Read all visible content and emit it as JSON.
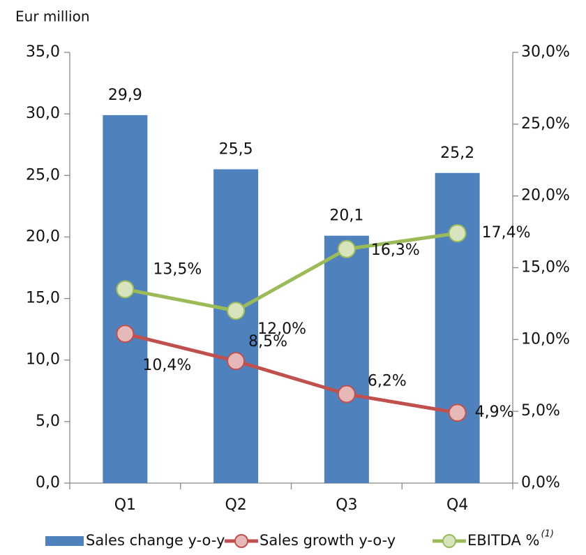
{
  "chart_data": {
    "type": "bar_line",
    "y_axis_label": "Eur million",
    "categories": [
      "Q1",
      "Q2",
      "Q3",
      "Q4"
    ],
    "ylim": [
      0,
      35
    ],
    "yticks": [
      {
        "value": 0,
        "label": "0,0"
      },
      {
        "value": 5,
        "label": "5,0"
      },
      {
        "value": 10,
        "label": "10,0"
      },
      {
        "value": 15,
        "label": "15,0"
      },
      {
        "value": 20,
        "label": "20,0"
      },
      {
        "value": 25,
        "label": "25,0"
      },
      {
        "value": 30,
        "label": "30,0"
      },
      {
        "value": 35,
        "label": "35,0"
      }
    ],
    "y2lim": [
      0,
      30
    ],
    "y2ticks": [
      {
        "value": 0,
        "label": "0,0%"
      },
      {
        "value": 5,
        "label": "5,0%"
      },
      {
        "value": 10,
        "label": "10,0%"
      },
      {
        "value": 15,
        "label": "15,0%"
      },
      {
        "value": 20,
        "label": "20,0%"
      },
      {
        "value": 25,
        "label": "25,0%"
      },
      {
        "value": 30,
        "label": "30,0%"
      }
    ],
    "series": [
      {
        "name": "Sales change y-o-y",
        "type": "bar",
        "color": "#4f81bd",
        "values": [
          29.9,
          25.5,
          20.1,
          25.2
        ],
        "value_labels": [
          "29,9",
          "25,5",
          "20,1",
          "25,2"
        ]
      },
      {
        "name": "Sales growth y-o-y",
        "type": "line",
        "axis": "y2",
        "color": "#c0504d",
        "marker_color": "#e6b9b8",
        "values": [
          10.4,
          8.5,
          6.2,
          4.9
        ],
        "value_labels": [
          "10,4%",
          "8,5%",
          "6,2%",
          "4,9%"
        ]
      },
      {
        "name": "EBITDA %",
        "name_superscript": "(1)",
        "type": "line",
        "axis": "y2",
        "color": "#9bbb59",
        "marker_color": "#d7e4bd",
        "values": [
          13.5,
          12.0,
          16.3,
          17.4
        ],
        "value_labels": [
          "13,5%",
          "12,0%",
          "16,3%",
          "17,4%"
        ]
      }
    ]
  }
}
